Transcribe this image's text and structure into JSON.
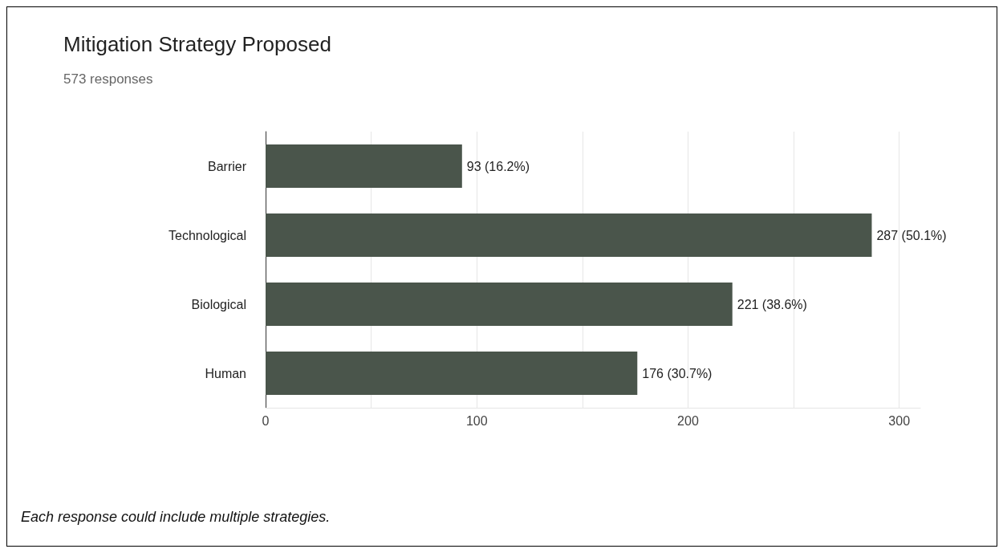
{
  "chart_data": {
    "type": "bar",
    "orientation": "horizontal",
    "title": "Mitigation Strategy Proposed",
    "subtitle": "573 responses",
    "categories": [
      "Barrier",
      "Technological",
      "Biological",
      "Human"
    ],
    "values": [
      93,
      287,
      221,
      176
    ],
    "color": "#4a554b",
    "value_labels": [
      "93 (16.2%)",
      "287 (50.1%)",
      "221 (38.6%)",
      "176 (30.7%)"
    ],
    "xlim": [
      0,
      310
    ],
    "xticks": [
      0,
      {
        "value": 50,
        "label": null
      },
      100,
      {
        "value": 150,
        "label": null
      },
      200,
      {
        "value": 250,
        "label": null
      },
      300
    ],
    "grid": "x",
    "annotations": [
      "Each response could include multiple strategies."
    ]
  }
}
